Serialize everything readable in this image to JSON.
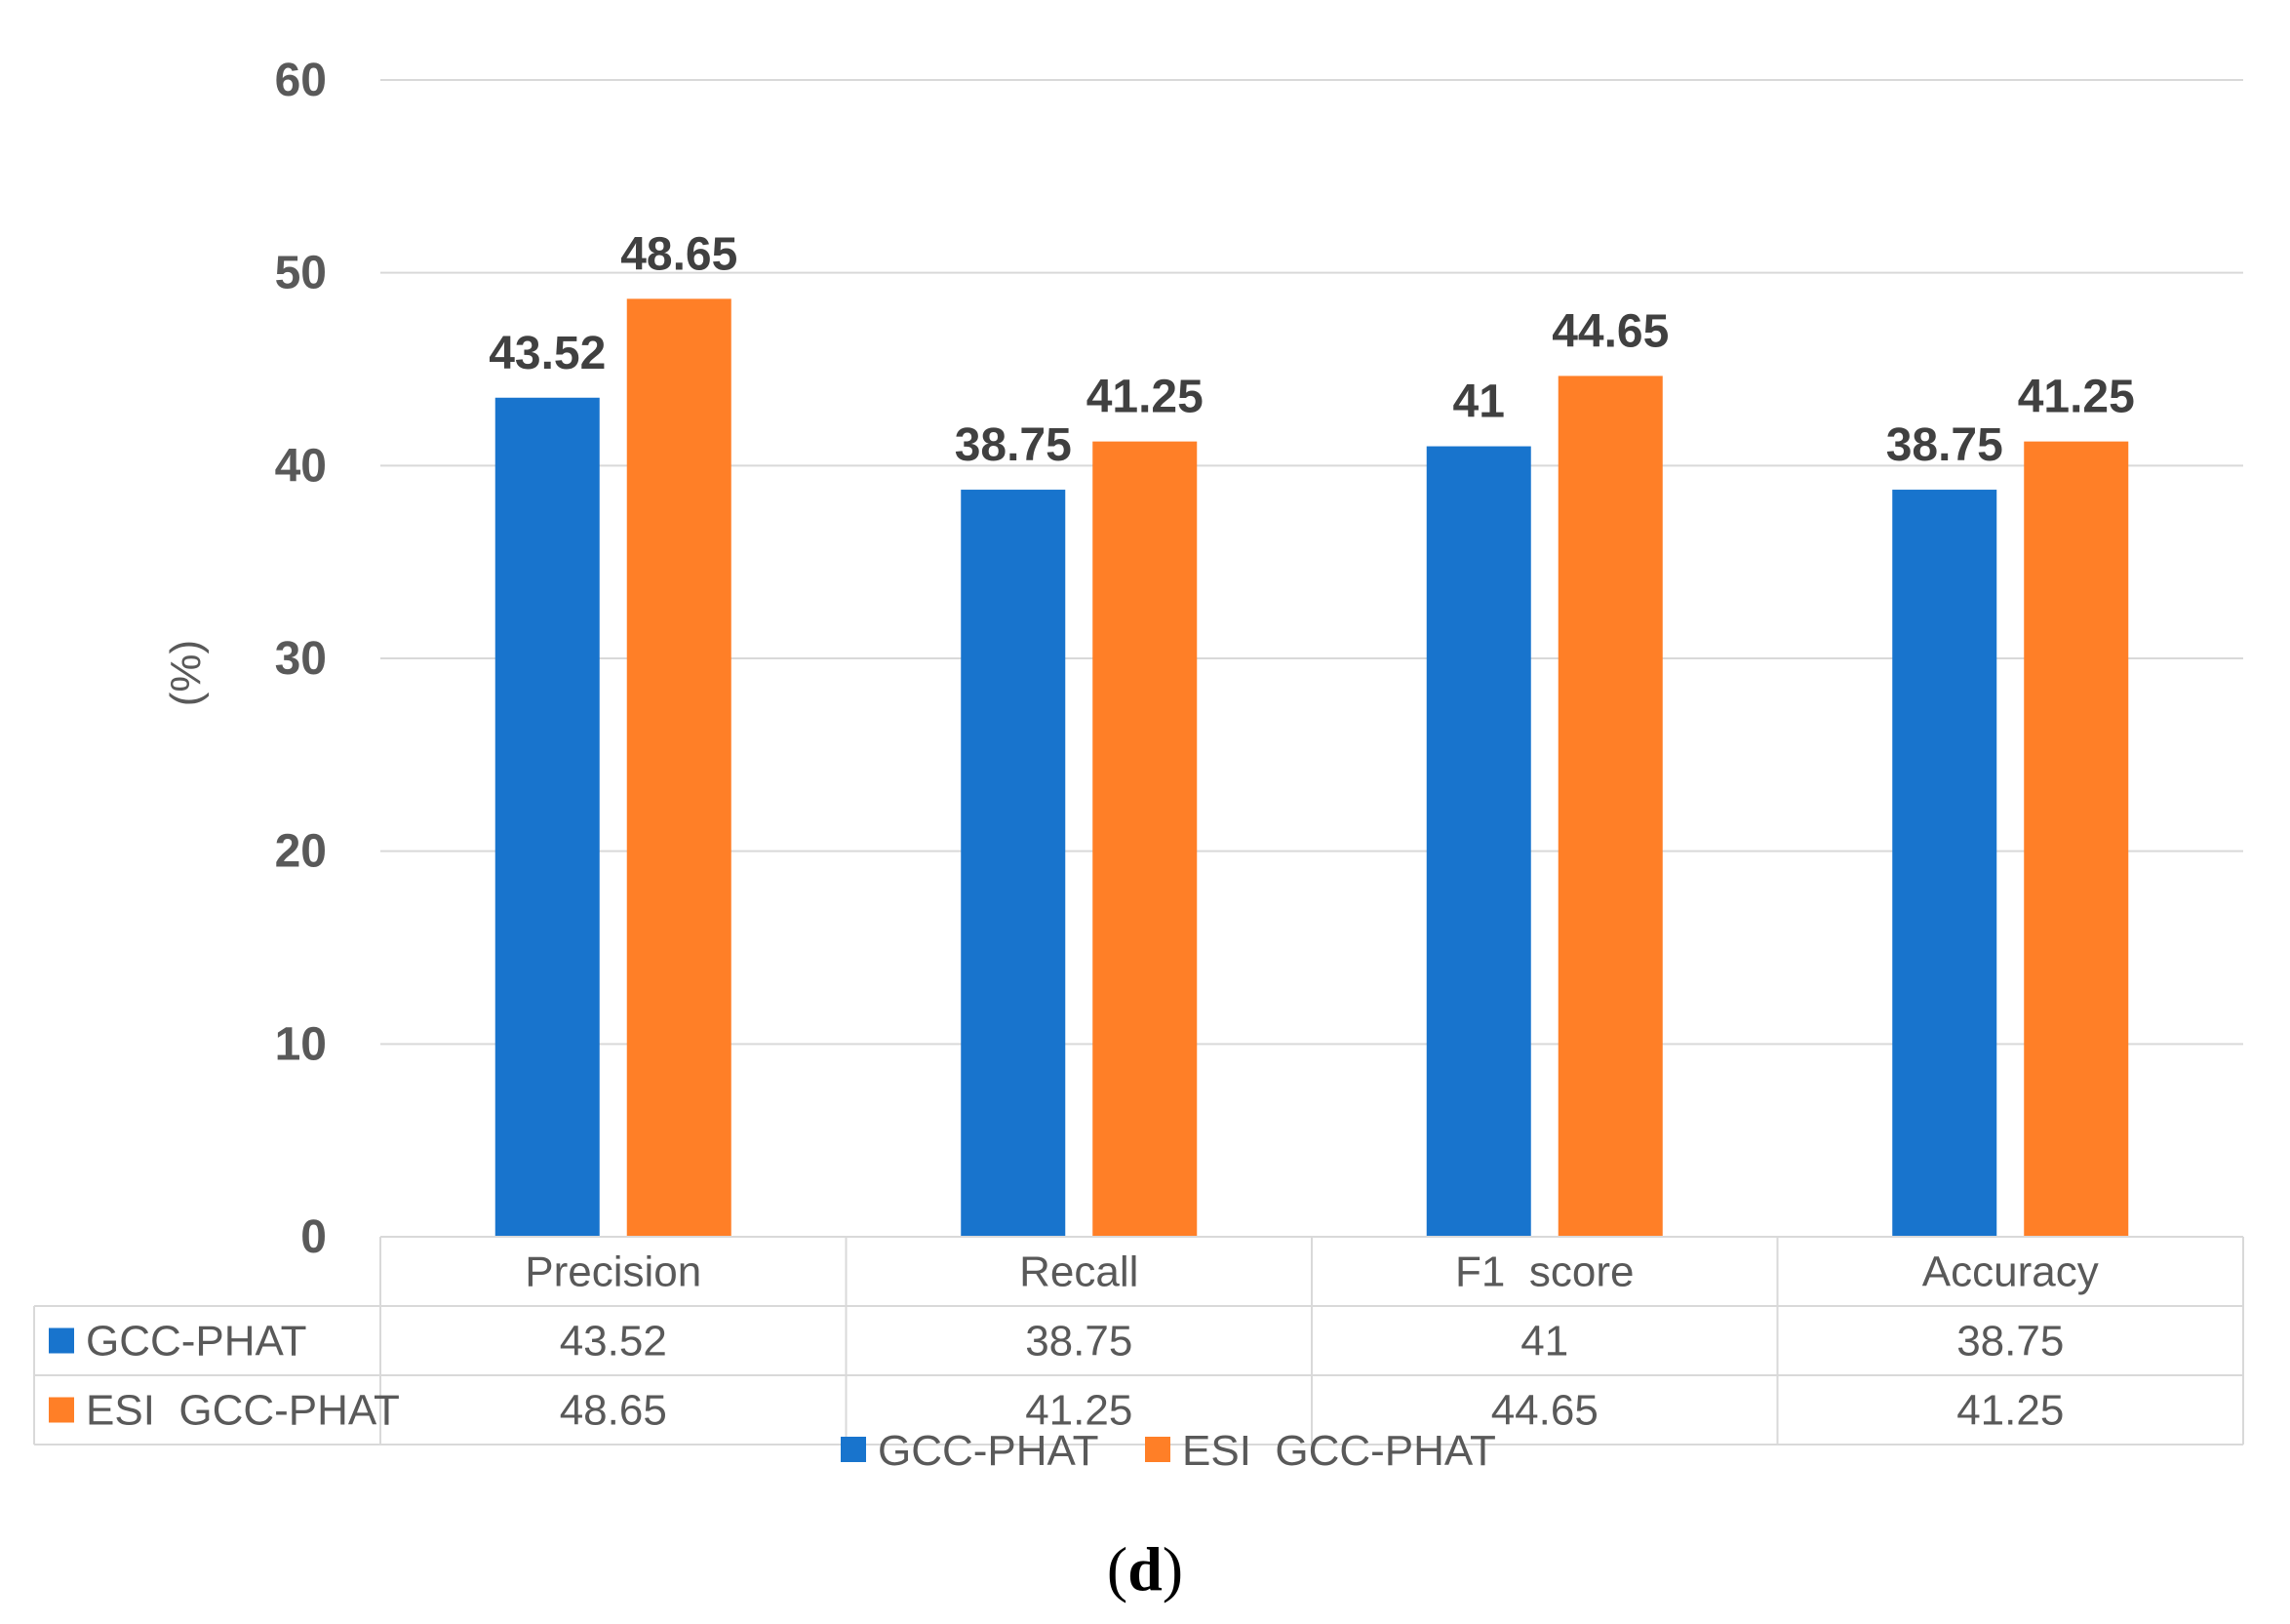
{
  "chart_data": {
    "type": "bar",
    "title": "",
    "xlabel": "",
    "ylabel": "(%)",
    "ylim": [
      0,
      60
    ],
    "yticks": [
      0,
      10,
      20,
      30,
      40,
      50,
      60
    ],
    "grid": true,
    "categories": [
      "Precision",
      "Recall",
      "F1  score",
      "Accuracy"
    ],
    "series": [
      {
        "name": "GCC-PHAT",
        "color": "#1874CD",
        "values": [
          43.52,
          38.75,
          41,
          38.75
        ],
        "labels": [
          "43.52",
          "38.75",
          "41",
          "38.75"
        ]
      },
      {
        "name": "ESI  GCC-PHAT",
        "color": "#FF7F27",
        "values": [
          48.65,
          41.25,
          44.65,
          41.25
        ],
        "labels": [
          "48.65",
          "41.25",
          "44.65",
          "41.25"
        ]
      }
    ],
    "legend_position": "bottom-center",
    "data_table": true
  },
  "caption": {
    "open": "(",
    "letter": "d",
    "close": ")"
  }
}
